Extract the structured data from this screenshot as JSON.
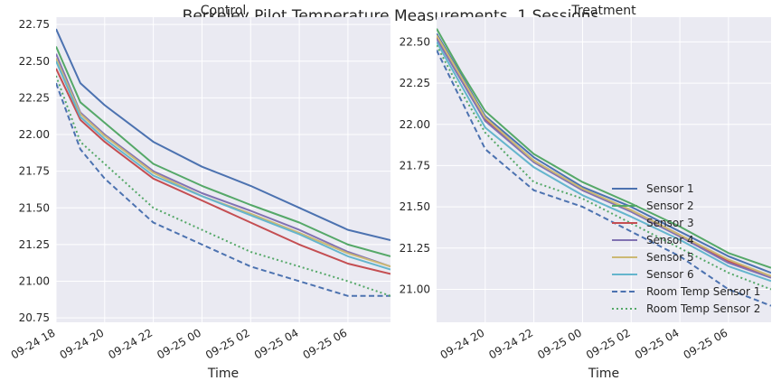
{
  "figure": {
    "suptitle": "Berkeley Pilot Temperature Measurements, 1 Sessions"
  },
  "colors": {
    "Sensor 1": "#4C72B0",
    "Sensor 2": "#55A868",
    "Sensor 3": "#C44E52",
    "Sensor 4": "#8172B2",
    "Sensor 5": "#CCB974",
    "Sensor 6": "#64B5CD",
    "Room Temp Sensor 1": "#4C72B0",
    "Room Temp Sensor 2": "#55A868",
    "axes_bg": "#EAEAF2",
    "grid": "#ffffff",
    "text": "#262626"
  },
  "chart_data": [
    {
      "type": "line",
      "title": "Control",
      "xlabel": "Time",
      "ylabel": "",
      "x_ticklabels": [
        "09-24 18",
        "09-24 20",
        "09-24 22",
        "09-25 00",
        "09-25 02",
        "09-25 04",
        "09-25 06"
      ],
      "y_ticklabels": [
        "20.75",
        "21.00",
        "21.25",
        "21.50",
        "21.75",
        "22.00",
        "22.25",
        "22.50",
        "22.75"
      ],
      "xlim": [
        "2017-09-24 18:00",
        "2017-09-25 07:45"
      ],
      "ylim": [
        20.72,
        22.8
      ],
      "grid": true,
      "x": [
        "2017-09-24 18:00",
        "2017-09-24 19:00",
        "2017-09-24 20:00",
        "2017-09-24 22:00",
        "2017-09-25 00:00",
        "2017-09-25 02:00",
        "2017-09-25 04:00",
        "2017-09-25 06:00",
        "2017-09-25 07:45"
      ],
      "series": [
        {
          "name": "Sensor 1",
          "style": "solid",
          "values": [
            22.72,
            22.35,
            22.2,
            21.95,
            21.78,
            21.65,
            21.5,
            21.35,
            21.28
          ]
        },
        {
          "name": "Sensor 2",
          "style": "solid",
          "values": [
            22.6,
            22.22,
            22.08,
            21.8,
            21.65,
            21.52,
            21.4,
            21.25,
            21.17
          ]
        },
        {
          "name": "Sensor 3",
          "style": "solid",
          "values": [
            22.45,
            22.1,
            21.95,
            21.7,
            21.55,
            21.4,
            21.25,
            21.12,
            21.05
          ]
        },
        {
          "name": "Sensor 4",
          "style": "solid",
          "values": [
            22.55,
            22.15,
            22.0,
            21.75,
            21.6,
            21.48,
            21.35,
            21.2,
            21.1
          ]
        },
        {
          "name": "Sensor 5",
          "style": "solid",
          "values": [
            22.52,
            22.14,
            21.99,
            21.74,
            21.58,
            21.46,
            21.33,
            21.19,
            21.1
          ]
        },
        {
          "name": "Sensor 6",
          "style": "solid",
          "values": [
            22.5,
            22.12,
            21.97,
            21.72,
            21.58,
            21.45,
            21.32,
            21.17,
            21.08
          ]
        },
        {
          "name": "Room Temp Sensor 1",
          "style": "dashed",
          "values": [
            22.35,
            21.9,
            21.7,
            21.4,
            21.25,
            21.1,
            21.0,
            20.9,
            20.9
          ]
        },
        {
          "name": "Room Temp Sensor 2",
          "style": "dotted",
          "values": [
            22.4,
            21.95,
            21.8,
            21.5,
            21.35,
            21.2,
            21.1,
            21.0,
            20.9
          ]
        }
      ]
    },
    {
      "type": "line",
      "title": "Treatment",
      "xlabel": "Time",
      "ylabel": "",
      "x_ticklabels": [
        "09-24 20",
        "09-24 22",
        "09-25 00",
        "09-25 02",
        "09-25 04",
        "09-25 06"
      ],
      "y_ticklabels": [
        "21.00",
        "21.25",
        "21.50",
        "21.75",
        "22.00",
        "22.25",
        "22.50"
      ],
      "xlim": [
        "2017-09-24 18:00",
        "2017-09-25 07:45"
      ],
      "ylim": [
        20.8,
        22.65
      ],
      "grid": true,
      "x": [
        "2017-09-24 18:00",
        "2017-09-24 19:00",
        "2017-09-24 20:00",
        "2017-09-24 22:00",
        "2017-09-25 00:00",
        "2017-09-25 02:00",
        "2017-09-25 04:00",
        "2017-09-25 06:00",
        "2017-09-25 07:45"
      ],
      "series": [
        {
          "name": "Sensor 1",
          "style": "solid",
          "values": [
            22.55,
            22.3,
            22.05,
            21.8,
            21.62,
            21.5,
            21.35,
            21.2,
            21.1
          ]
        },
        {
          "name": "Sensor 2",
          "style": "solid",
          "values": [
            22.58,
            22.32,
            22.08,
            21.82,
            21.65,
            21.52,
            21.38,
            21.22,
            21.13
          ]
        },
        {
          "name": "Sensor 3",
          "style": "solid",
          "values": [
            22.53,
            22.28,
            22.03,
            21.78,
            21.6,
            21.48,
            21.33,
            21.17,
            21.08
          ]
        },
        {
          "name": "Sensor 4",
          "style": "solid",
          "values": [
            22.52,
            22.27,
            22.02,
            21.77,
            21.6,
            21.47,
            21.32,
            21.16,
            21.07
          ]
        },
        {
          "name": "Sensor 5",
          "style": "solid",
          "values": [
            22.54,
            22.29,
            22.04,
            21.78,
            21.61,
            21.48,
            21.33,
            21.18,
            21.08
          ]
        },
        {
          "name": "Sensor 6",
          "style": "solid",
          "values": [
            22.5,
            22.24,
            21.98,
            21.74,
            21.57,
            21.44,
            21.3,
            21.14,
            21.05
          ]
        },
        {
          "name": "Room Temp Sensor 1",
          "style": "dashed",
          "values": [
            22.45,
            22.15,
            21.85,
            21.6,
            21.5,
            21.35,
            21.2,
            21.0,
            20.9
          ]
        },
        {
          "name": "Room Temp Sensor 2",
          "style": "dotted",
          "values": [
            22.48,
            22.2,
            21.95,
            21.65,
            21.55,
            21.4,
            21.25,
            21.1,
            21.0
          ]
        }
      ],
      "legend": {
        "placement": "lower-right",
        "entries": [
          "Sensor 1",
          "Sensor 2",
          "Sensor 3",
          "Sensor 4",
          "Sensor 5",
          "Sensor 6",
          "Room Temp Sensor 1",
          "Room Temp Sensor 2"
        ]
      }
    }
  ]
}
